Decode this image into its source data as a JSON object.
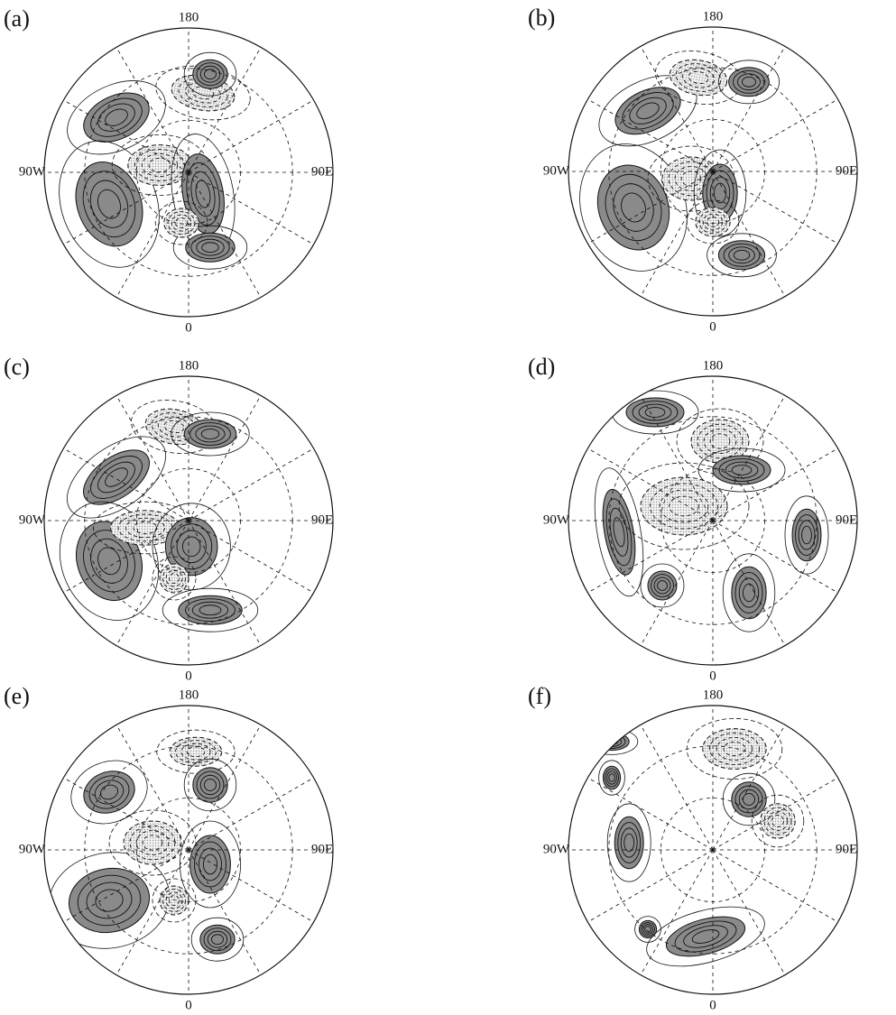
{
  "panels": [
    {
      "label": "(a)",
      "lon_top": "180",
      "lon_left": "90W",
      "lon_right": "90E",
      "lon_bottom": "0"
    },
    {
      "label": "(b)",
      "lon_top": "180",
      "lon_left": "90W",
      "lon_right": "90E",
      "lon_bottom": "0"
    },
    {
      "label": "(c)",
      "lon_top": "180",
      "lon_left": "90W",
      "lon_right": "90E",
      "lon_bottom": "0"
    },
    {
      "label": "(d)",
      "lon_top": "180",
      "lon_left": "90W",
      "lon_right": "90E",
      "lon_bottom": "0"
    },
    {
      "label": "(e)",
      "lon_top": "180",
      "lon_left": "90W",
      "lon_right": "90E",
      "lon_bottom": "0"
    },
    {
      "label": "(f)",
      "lon_top": "180",
      "lon_left": "90W",
      "lon_right": "90E",
      "lon_bottom": "0"
    }
  ]
}
